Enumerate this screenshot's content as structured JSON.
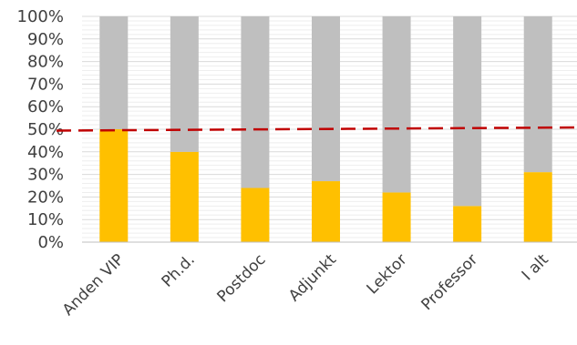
{
  "chart_data": {
    "type": "bar",
    "stacked_percent": true,
    "categories": [
      "Anden VIP",
      "Ph.d.",
      "Postdoc",
      "Adjunkt",
      "Lektor",
      "Professor",
      "I alt"
    ],
    "series": [
      {
        "color": "#ffc000",
        "values": [
          50,
          40,
          24,
          27,
          22,
          16,
          31
        ]
      },
      {
        "color": "#bfbfbf",
        "values": [
          50,
          60,
          76,
          73,
          78,
          84,
          69
        ]
      }
    ],
    "reference_line": {
      "value": 50,
      "color": "#c00000",
      "style": "dashed"
    },
    "y_ticks": [
      "0%",
      "10%",
      "20%",
      "30%",
      "40%",
      "50%",
      "60%",
      "70%",
      "80%",
      "90%",
      "100%"
    ],
    "ylim": [
      0,
      100
    ],
    "grid": true,
    "legend": "none"
  }
}
